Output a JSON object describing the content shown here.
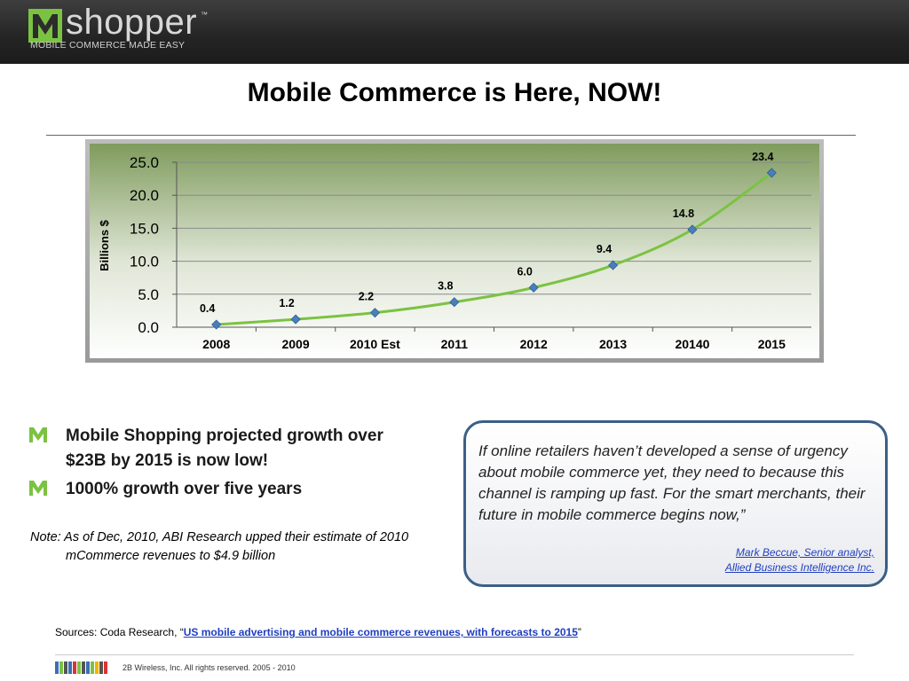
{
  "header": {
    "brand": "shopper",
    "tm": "™",
    "tagline": "MOBILE COMMERCE MADE EASY"
  },
  "page_title": "Mobile Commerce is Here, NOW!",
  "chart_data": {
    "type": "line",
    "categories": [
      "2008",
      "2009",
      "2010 Est",
      "2011",
      "2012",
      "2013",
      "20140",
      "2015"
    ],
    "values": [
      0.4,
      1.2,
      2.2,
      3.8,
      6.0,
      9.4,
      14.8,
      23.4
    ],
    "value_labels": [
      "0.4",
      "1.2",
      "2.2",
      "3.8",
      "6.0",
      "9.4",
      "14.8",
      "23.4"
    ],
    "ylabel": "Billions $",
    "ylim": [
      0,
      25
    ],
    "yticks": [
      "0.0",
      "5.0",
      "10.0",
      "15.0",
      "20.0",
      "25.0"
    ],
    "grid": true,
    "colors": {
      "line": "#7cc242",
      "marker": "#4a7ebb",
      "frame": "#a8a8a8"
    }
  },
  "bullets": [
    "Mobile Shopping projected growth over $23B by 2015 is now low!",
    "1000% growth over five years"
  ],
  "note": "Note:  As of Dec, 2010, ABI Research upped their estimate of 2010 mCommerce revenues to $4.9 billion",
  "quote": {
    "text": "If online retailers haven’t developed a sense of urgency about mobile commerce yet, they need to because this channel is ramping up fast. For the smart merchants, their future in mobile commerce begins now,”",
    "attribution_line1": "Mark Beccue, Senior analyst,",
    "attribution_line2": "Allied Business Intelligence Inc."
  },
  "sources": {
    "prefix": "Sources:  Coda Research, “",
    "link": "US mobile advertising and mobile commerce revenues, with forecasts to 2015",
    "suffix": "”"
  },
  "footer": "2B Wireless, Inc. All rights reserved. 2005 - 2010",
  "colors": {
    "brand_green": "#7cc242",
    "link": "#1f3fbf",
    "quote_border": "#3b5f86"
  }
}
